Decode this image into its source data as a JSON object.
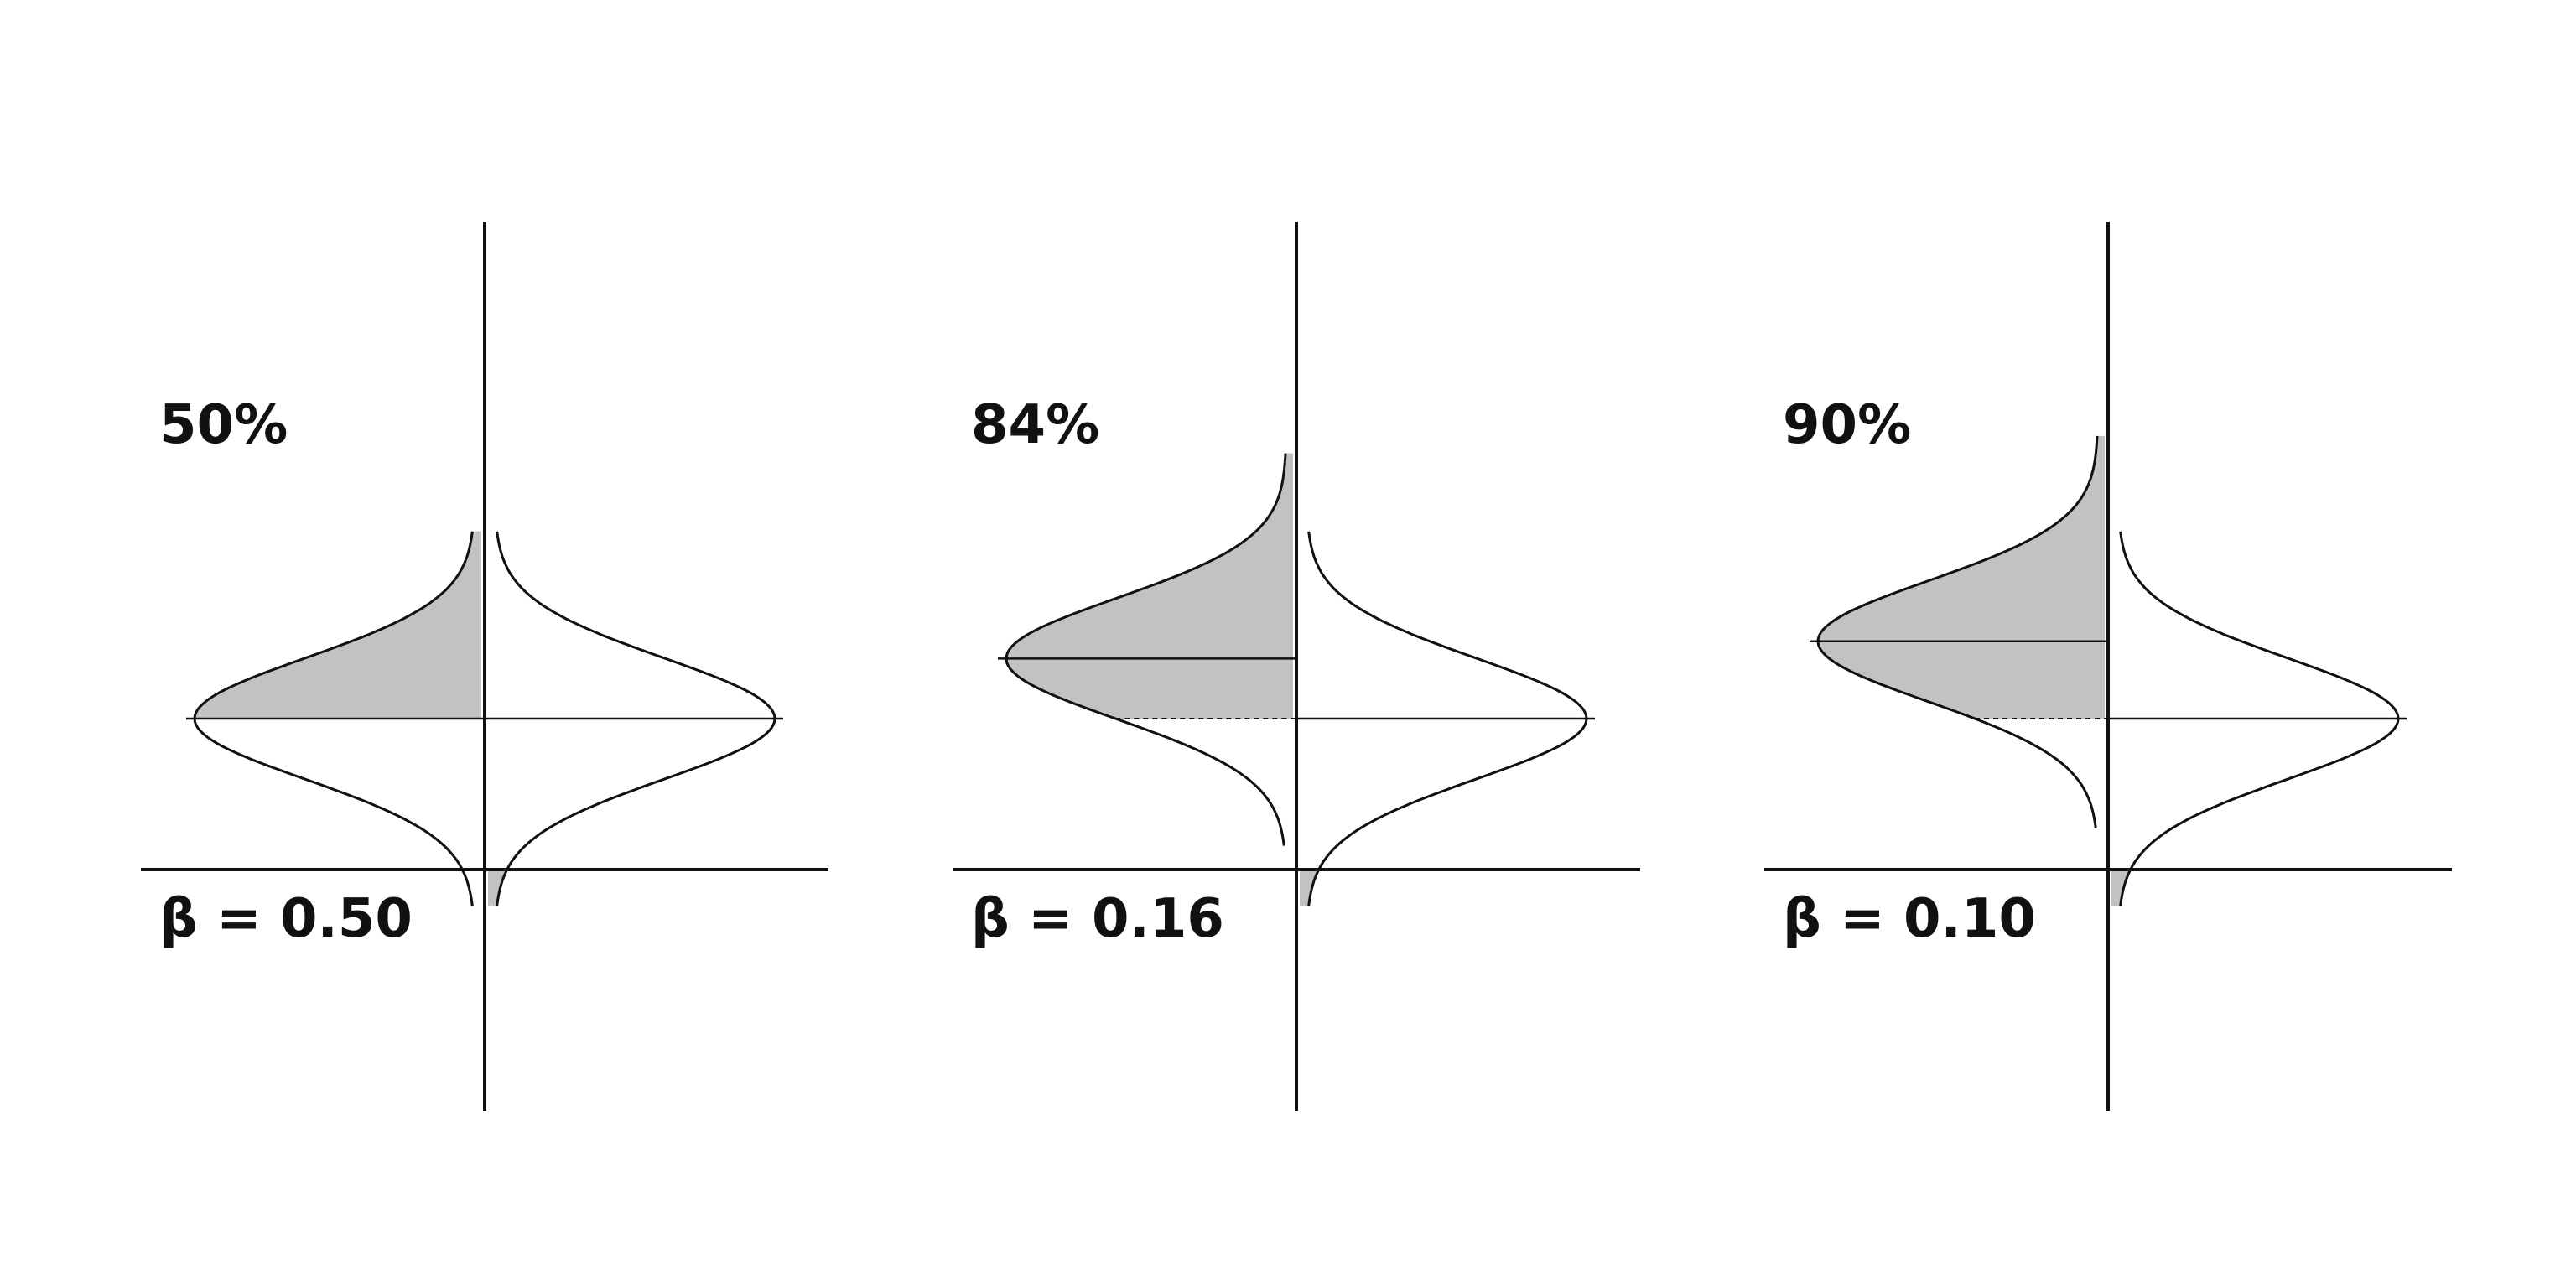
{
  "panels": [
    {
      "percent_label": "50%",
      "beta_label": "β = 0.50",
      "percentile": 0.5,
      "beta": 0.5
    },
    {
      "percent_label": "84%",
      "beta_label": "β = 0.16",
      "percentile": 0.84,
      "beta": 0.16
    },
    {
      "percent_label": "90%",
      "beta_label": "β = 0.10",
      "percentile": 0.9,
      "beta": 0.1
    }
  ],
  "colors": {
    "shade": "#c2c2c2",
    "line": "#111111",
    "background": "#ffffff"
  }
}
